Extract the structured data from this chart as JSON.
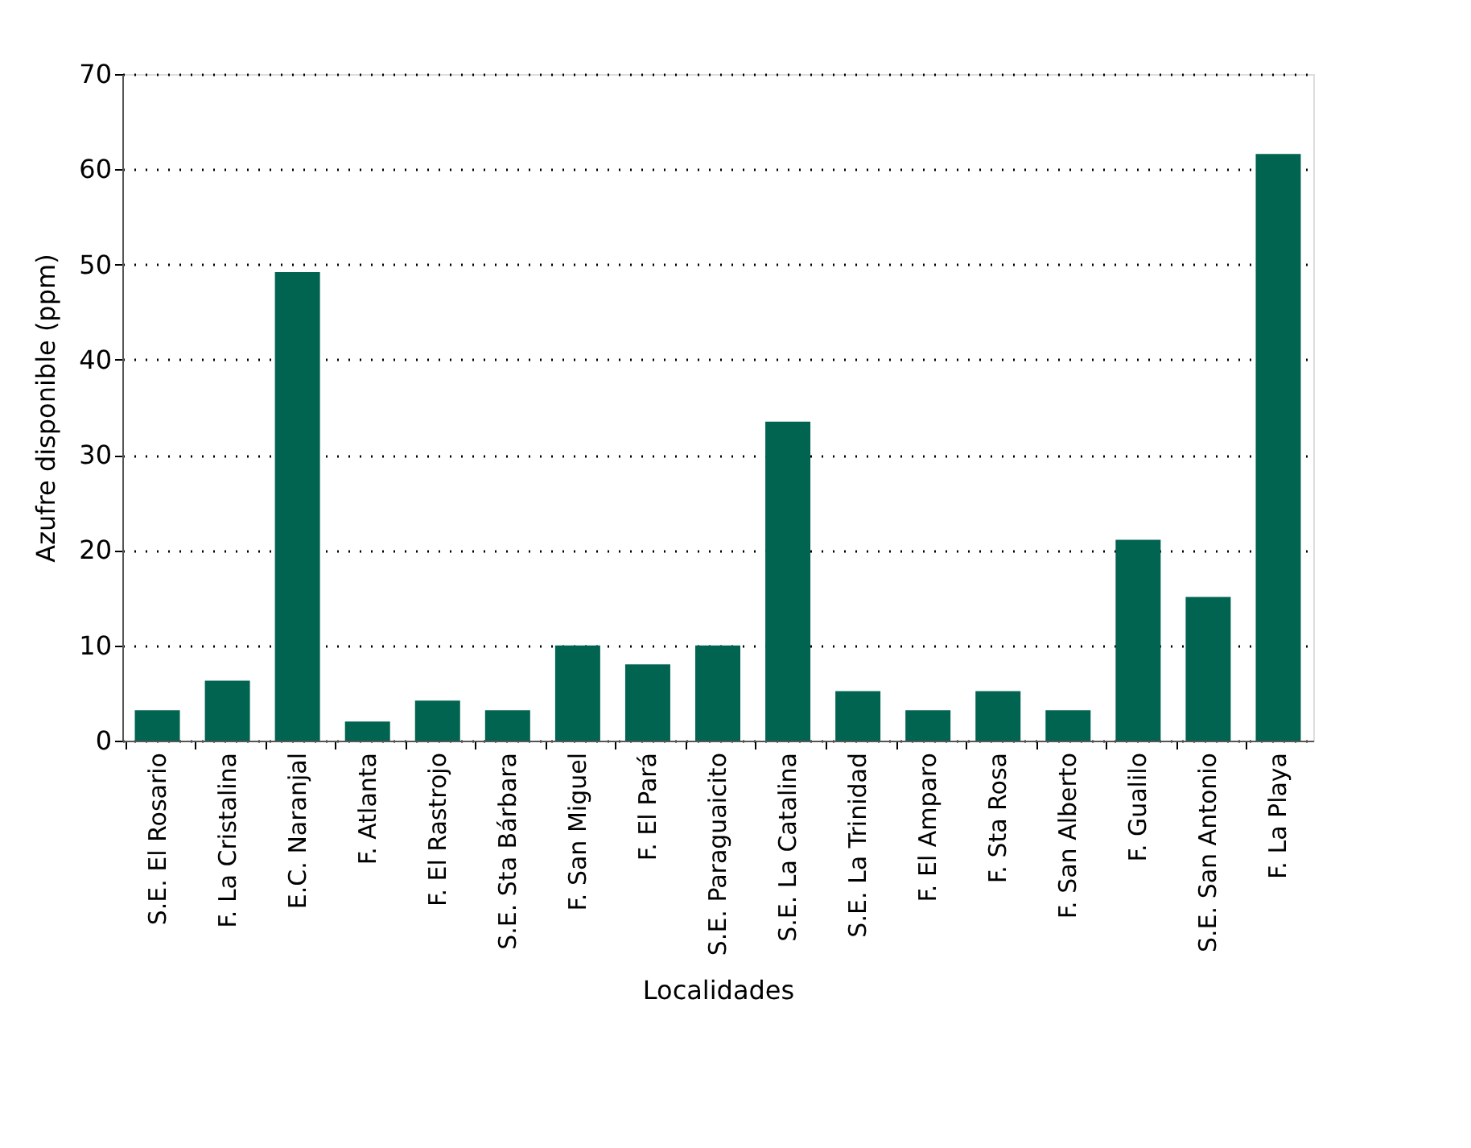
{
  "chart_data": {
    "type": "bar",
    "xlabel": "Localidades",
    "ylabel": "Azufre disponible (ppm)",
    "categories": [
      "S.E. El Rosario",
      "F. La Cristalina",
      "E.C. Naranjal",
      "F. Atlanta",
      "F. El Rastrojo",
      "S.E. Sta Bárbara",
      "F. San Miguel",
      "F. El Pará",
      "S.E. Paraguaicito",
      "S.E. La Catalina",
      "S.E. La Trinidad",
      "F. El Amparo",
      "F. Sta Rosa",
      "F. San Alberto",
      "F. Gualilo",
      "S.E. San Antonio",
      "F. La Playa"
    ],
    "values": [
      3.2,
      6.3,
      49.2,
      2.0,
      4.2,
      3.2,
      10.0,
      8.0,
      10.0,
      33.5,
      5.2,
      3.2,
      5.2,
      3.2,
      21.1,
      15.1,
      61.6
    ],
    "color": "#006450",
    "ylim": [
      0,
      70
    ],
    "yticks": [
      0,
      10,
      20,
      30,
      40,
      50,
      60,
      70
    ],
    "grid": "y",
    "line_style": "dotted"
  }
}
